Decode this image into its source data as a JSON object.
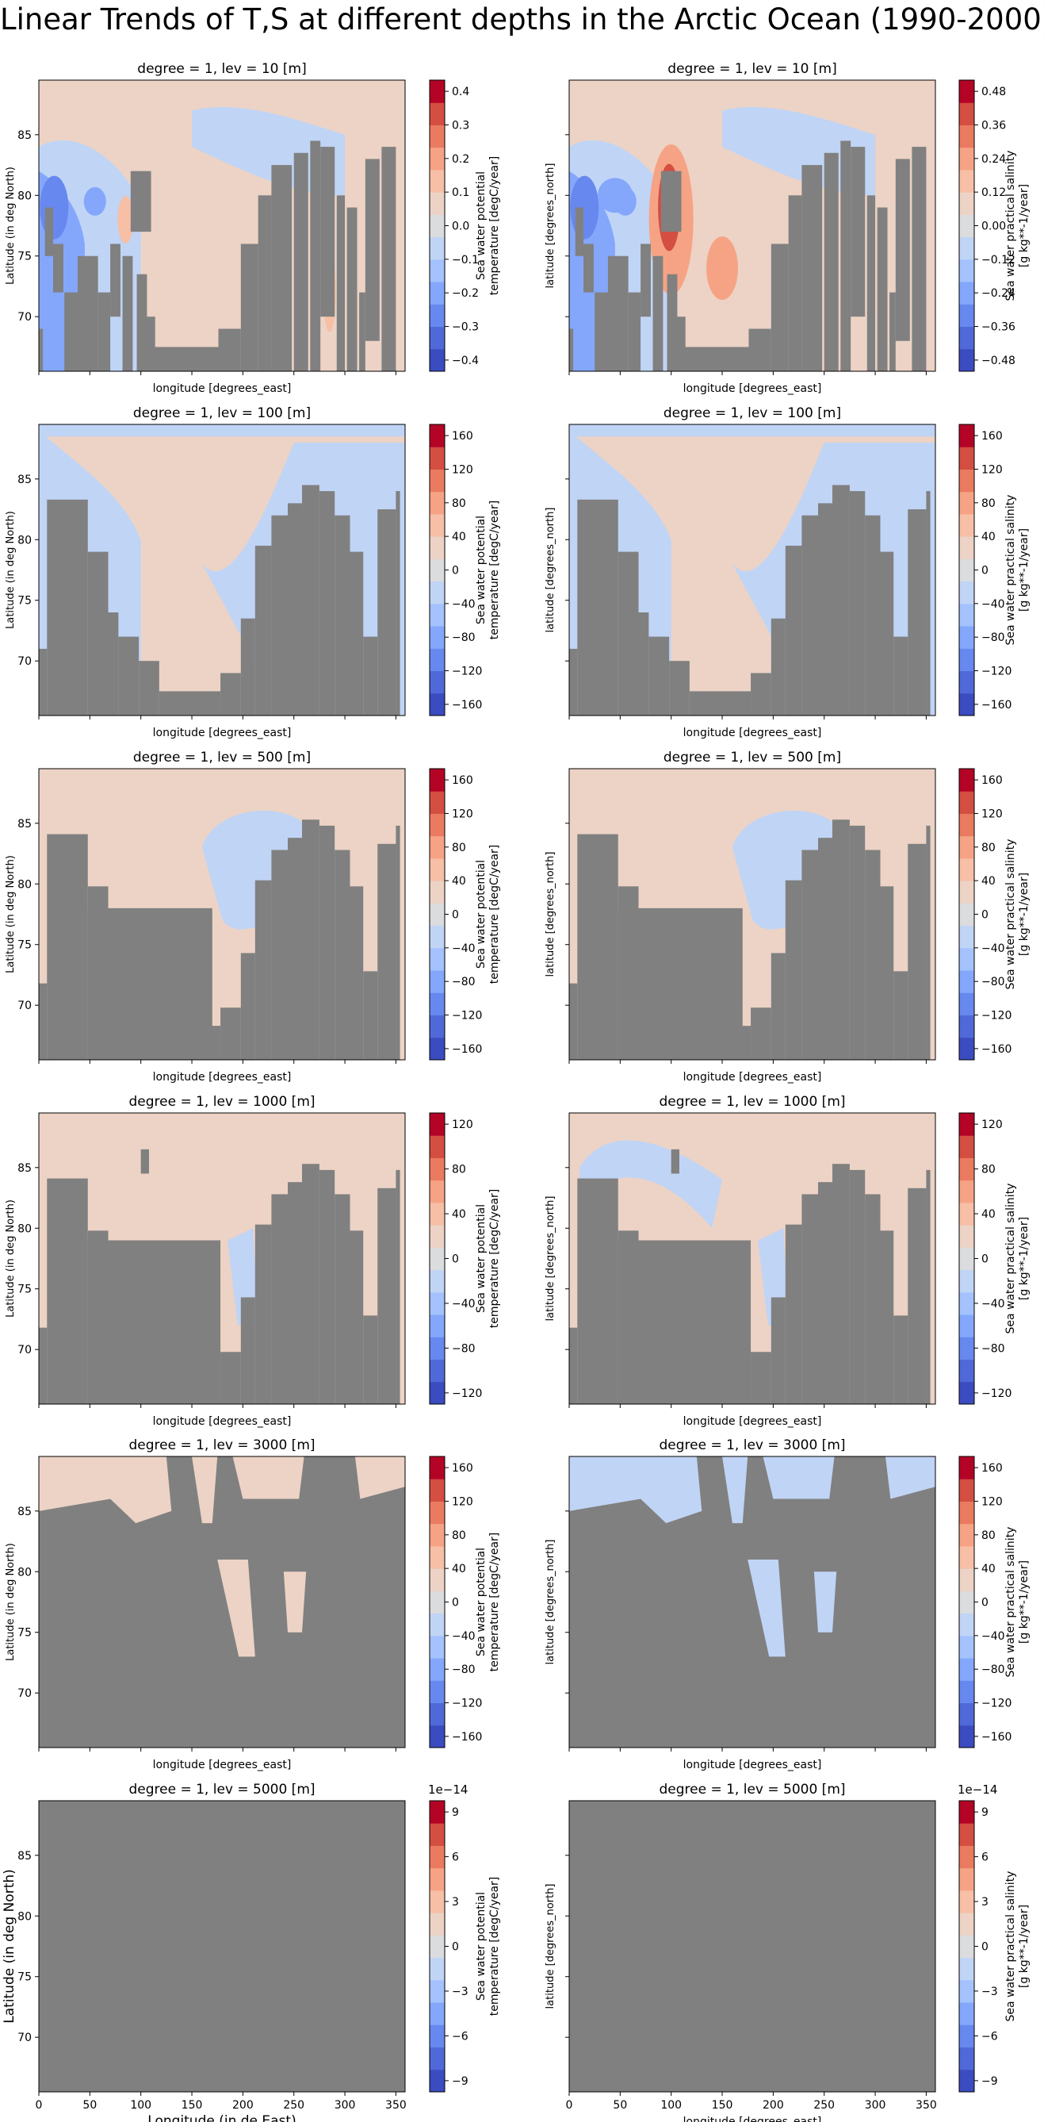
{
  "figure": {
    "title": "Linear Trends of T,S at different depths in the Arctic Ocean (1990-2000)"
  },
  "colors": {
    "land": "#808080",
    "cmap": [
      "#3b4cc0",
      "#4f69d9",
      "#6788ee",
      "#84a7fc",
      "#a3c2fe",
      "#c0d4f5",
      "#dbdcde",
      "#ecd3c5",
      "#f6bfa6",
      "#f6a385",
      "#ea7b60",
      "#d44e41",
      "#b40426"
    ]
  },
  "chart_data": [
    {
      "type": "heatmap",
      "panel": "temperature",
      "title": "degree = 1, lev = 10 [m]",
      "xlabel": "longitude [degrees_east]",
      "ylabel": "Latitude (in deg North)",
      "xlim": [
        0,
        359
      ],
      "ylim": [
        65.5,
        89.5
      ],
      "yticks": [
        70,
        75,
        80,
        85
      ],
      "xticks": [],
      "colorbar": {
        "label_lines": [
          "Sea water potential",
          "temperature [degC/year]"
        ],
        "ticks": [
          "0.4",
          "0.3",
          "0.2",
          "0.1",
          "0.0",
          "−0.1",
          "−0.2",
          "−0.3",
          "−0.4"
        ],
        "multiplier": ""
      }
    },
    {
      "type": "heatmap",
      "panel": "salinity",
      "title": "degree = 1, lev = 10 [m]",
      "xlabel": "longitude [degrees_east]",
      "ylabel": "latitude [degrees_north]",
      "xlim": [
        0,
        359
      ],
      "ylim": [
        65.5,
        89.5
      ],
      "yticks": [],
      "xticks": [],
      "colorbar": {
        "label_lines": [
          "Sea water practical salinity",
          "[g kg**-1/year]"
        ],
        "ticks": [
          "0.48",
          "0.36",
          "0.24",
          "0.12",
          "0.00",
          "−0.12",
          "−0.24",
          "−0.36",
          "−0.48"
        ],
        "multiplier": ""
      }
    },
    {
      "type": "heatmap",
      "panel": "temperature",
      "title": "degree = 1, lev = 100 [m]",
      "xlabel": "longitude [degrees_east]",
      "ylabel": "Latitude (in deg North)",
      "xlim": [
        0,
        359
      ],
      "ylim": [
        65.5,
        89.5
      ],
      "yticks": [
        70,
        75,
        80,
        85
      ],
      "xticks": [],
      "colorbar": {
        "label_lines": [
          "Sea water potential",
          "temperature [degC/year]"
        ],
        "ticks": [
          "160",
          "120",
          "80",
          "40",
          "0",
          "−40",
          "−80",
          "−120",
          "−160"
        ],
        "multiplier": ""
      }
    },
    {
      "type": "heatmap",
      "panel": "salinity",
      "title": "degree = 1, lev = 100 [m]",
      "xlabel": "longitude [degrees_east]",
      "ylabel": "latitude [degrees_north]",
      "xlim": [
        0,
        359
      ],
      "ylim": [
        65.5,
        89.5
      ],
      "yticks": [],
      "xticks": [],
      "colorbar": {
        "label_lines": [
          "Sea water practical salinity",
          "[g kg**-1/year]"
        ],
        "ticks": [
          "160",
          "120",
          "80",
          "40",
          "0",
          "−40",
          "−80",
          "−120",
          "−160"
        ],
        "multiplier": ""
      }
    },
    {
      "type": "heatmap",
      "panel": "temperature",
      "title": "degree = 1, lev = 500 [m]",
      "xlabel": "longitude [degrees_east]",
      "ylabel": "Latitude (in deg North)",
      "xlim": [
        0,
        359
      ],
      "ylim": [
        65.5,
        89.5
      ],
      "yticks": [
        70,
        75,
        80,
        85
      ],
      "xticks": [],
      "colorbar": {
        "label_lines": [
          "Sea water potential",
          "temperature [degC/year]"
        ],
        "ticks": [
          "160",
          "120",
          "80",
          "40",
          "0",
          "−40",
          "−80",
          "−120",
          "−160"
        ],
        "multiplier": ""
      }
    },
    {
      "type": "heatmap",
      "panel": "salinity",
      "title": "degree = 1, lev = 500 [m]",
      "xlabel": "longitude [degrees_east]",
      "ylabel": "latitude [degrees_north]",
      "xlim": [
        0,
        359
      ],
      "ylim": [
        65.5,
        89.5
      ],
      "yticks": [],
      "xticks": [],
      "colorbar": {
        "label_lines": [
          "Sea water practical salinity",
          "[g kg**-1/year]"
        ],
        "ticks": [
          "160",
          "120",
          "80",
          "40",
          "0",
          "−40",
          "−80",
          "−120",
          "−160"
        ],
        "multiplier": ""
      }
    },
    {
      "type": "heatmap",
      "panel": "temperature",
      "title": "degree = 1, lev = 1000 [m]",
      "xlabel": "longitude [degrees_east]",
      "ylabel": "Latitude (in deg North)",
      "xlim": [
        0,
        359
      ],
      "ylim": [
        65.5,
        89.5
      ],
      "yticks": [
        70,
        75,
        80,
        85
      ],
      "xticks": [],
      "colorbar": {
        "label_lines": [
          "Sea water potential",
          "temperature [degC/year]"
        ],
        "ticks": [
          "120",
          "80",
          "40",
          "0",
          "−40",
          "−80",
          "−120"
        ],
        "multiplier": ""
      }
    },
    {
      "type": "heatmap",
      "panel": "salinity",
      "title": "degree = 1, lev = 1000 [m]",
      "xlabel": "longitude [degrees_east]",
      "ylabel": "latitude [degrees_north]",
      "xlim": [
        0,
        359
      ],
      "ylim": [
        65.5,
        89.5
      ],
      "yticks": [],
      "xticks": [],
      "colorbar": {
        "label_lines": [
          "Sea water practical salinity",
          "[g kg**-1/year]"
        ],
        "ticks": [
          "120",
          "80",
          "40",
          "0",
          "−40",
          "−80",
          "−120"
        ],
        "multiplier": ""
      }
    },
    {
      "type": "heatmap",
      "panel": "temperature",
      "title": "degree = 1, lev = 3000 [m]",
      "xlabel": "longitude [degrees_east]",
      "ylabel": "Latitude (in deg North)",
      "xlim": [
        0,
        359
      ],
      "ylim": [
        65.5,
        89.5
      ],
      "yticks": [
        70,
        75,
        80,
        85
      ],
      "xticks": [],
      "colorbar": {
        "label_lines": [
          "Sea water potential",
          "temperature [degC/year]"
        ],
        "ticks": [
          "160",
          "120",
          "80",
          "40",
          "0",
          "−40",
          "−80",
          "−120",
          "−160"
        ],
        "multiplier": ""
      }
    },
    {
      "type": "heatmap",
      "panel": "salinity",
      "title": "degree = 1, lev = 3000 [m]",
      "xlabel": "longitude [degrees_east]",
      "ylabel": "latitude [degrees_north]",
      "xlim": [
        0,
        359
      ],
      "ylim": [
        65.5,
        89.5
      ],
      "yticks": [],
      "xticks": [],
      "colorbar": {
        "label_lines": [
          "Sea water practical salinity",
          "[g kg**-1/year]"
        ],
        "ticks": [
          "160",
          "120",
          "80",
          "40",
          "0",
          "−40",
          "−80",
          "−120",
          "−160"
        ],
        "multiplier": ""
      }
    },
    {
      "type": "heatmap",
      "panel": "temperature",
      "title": "degree = 1, lev = 5000 [m]",
      "xlabel": "Longitude (in de East)",
      "ylabel": "Latitude (in deg North)",
      "xlim": [
        0,
        359
      ],
      "ylim": [
        65.5,
        89.5
      ],
      "yticks": [
        70,
        75,
        80,
        85
      ],
      "xticks": [
        0,
        50,
        100,
        150,
        200,
        250,
        300,
        350
      ],
      "colorbar": {
        "label_lines": [
          "Sea water potential",
          "temperature [degC/year]"
        ],
        "ticks": [
          "9",
          "6",
          "3",
          "0",
          "−3",
          "−6",
          "−9"
        ],
        "multiplier": "1e−14"
      }
    },
    {
      "type": "heatmap",
      "panel": "salinity",
      "title": "degree = 1, lev = 5000 [m]",
      "xlabel": "longitude [degrees_east]",
      "ylabel": "latitude [degrees_north]",
      "xlim": [
        0,
        359
      ],
      "ylim": [
        65.5,
        89.5
      ],
      "yticks": [],
      "xticks": [
        0,
        50,
        100,
        150,
        200,
        250,
        300,
        350
      ],
      "colorbar": {
        "label_lines": [
          "Sea water practical salinity",
          "[g kg**-1/year]"
        ],
        "ticks": [
          "9",
          "6",
          "3",
          "0",
          "−3",
          "−6",
          "−9"
        ],
        "multiplier": "1e−14"
      }
    }
  ]
}
